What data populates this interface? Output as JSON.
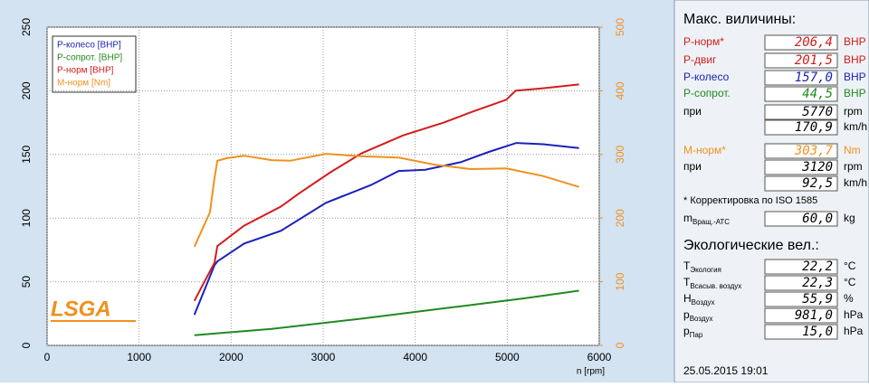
{
  "chart_data": {
    "type": "line",
    "xlabel": "n [rpm]",
    "xlim": [
      0,
      6000
    ],
    "xticks": [
      0,
      1000,
      2000,
      3000,
      4000,
      5000,
      6000
    ],
    "ylim": [
      0,
      250
    ],
    "yticks": [
      0,
      50,
      100,
      150,
      200,
      250
    ],
    "y2lim": [
      0,
      500
    ],
    "y2ticks": [
      0,
      100,
      200,
      300,
      400,
      500
    ],
    "grid": true,
    "legend": "upper left",
    "series": [
      {
        "name": "P-колесо [BHP]",
        "color": "#1a22b8",
        "x": [
          1600,
          1820,
          1850,
          2140,
          2540,
          3030,
          3520,
          3820,
          4110,
          4500,
          4800,
          5100,
          5390,
          5780
        ],
        "values": [
          24,
          63,
          66,
          80,
          90,
          112,
          126,
          137,
          138,
          144,
          152,
          159,
          158,
          155
        ]
      },
      {
        "name": "P-сопрот. [BHP]",
        "color": "#1f8a1f",
        "x": [
          1600,
          2440,
          3420,
          4410,
          5190,
          5780
        ],
        "values": [
          8,
          13,
          21,
          30,
          37,
          43
        ]
      },
      {
        "name": "P-норм [BHP]",
        "color": "#d41c1c",
        "x": [
          1600,
          1820,
          1850,
          2140,
          2540,
          2730,
          3080,
          3420,
          3870,
          4310,
          4600,
          4990,
          5090,
          5390,
          5780
        ],
        "values": [
          35,
          65,
          78,
          94,
          109,
          119,
          136,
          151,
          165,
          175,
          183,
          193,
          200,
          202,
          205
        ]
      },
      {
        "name": "М-норм [Nm]",
        "color": "#f0901e",
        "axis": "y2",
        "x": [
          1600,
          1770,
          1820,
          1850,
          1950,
          2140,
          2440,
          2640,
          3030,
          3420,
          3820,
          4210,
          4600,
          4990,
          5390,
          5780
        ],
        "values": [
          155,
          209,
          263,
          290,
          294,
          298,
          291,
          290,
          301,
          297,
          295,
          284,
          277,
          278,
          266,
          249
        ]
      }
    ]
  },
  "logo": "LSGA",
  "panel": {
    "title": "Макс. виличины:",
    "rows1": [
      {
        "label": "P-норм*",
        "value": "206,4",
        "unit": "BHP",
        "color": "#d41c1c"
      },
      {
        "label": "P-двиг",
        "value": "201,5",
        "unit": "BHP",
        "color": "#d41c1c"
      },
      {
        "label": "P-колесо",
        "value": "157,0",
        "unit": "BHP",
        "color": "#1a22b8"
      },
      {
        "label": "P-сопрот.",
        "value": "44,5",
        "unit": "BHP",
        "color": "#1f8a1f"
      },
      {
        "label": "при",
        "value": "5770",
        "unit": "rpm"
      },
      {
        "value": "170,9",
        "unit": "km/h"
      }
    ],
    "rows2": [
      {
        "label": "М-норм*",
        "value": "303,7",
        "unit": "Nm",
        "color": "#f0901e"
      },
      {
        "label": "при",
        "value": "3120",
        "unit": "rpm"
      },
      {
        "value": "92,5",
        "unit": "km/h"
      }
    ],
    "note": "* Корректировка по ISO 1585",
    "mass": {
      "label": "m",
      "sub": "Вращ.-АТС",
      "value": "60,0",
      "unit": "kg"
    },
    "eco_title": "Экологические вел.:",
    "eco": [
      {
        "label": "T",
        "sub": "Экология",
        "value": "22,2",
        "unit": "°C"
      },
      {
        "label": "T",
        "sub": "Всасыв. воздух",
        "value": "22,3",
        "unit": "°C"
      },
      {
        "label": "H",
        "sub": "Воздух",
        "value": "55,9",
        "unit": "%"
      },
      {
        "label": "p",
        "sub": "Воздух",
        "value": "981,0",
        "unit": "hPa"
      },
      {
        "label": "p",
        "sub": "Пар",
        "value": "15,0",
        "unit": "hPa"
      }
    ],
    "date": "25.05.2015  19:01"
  }
}
